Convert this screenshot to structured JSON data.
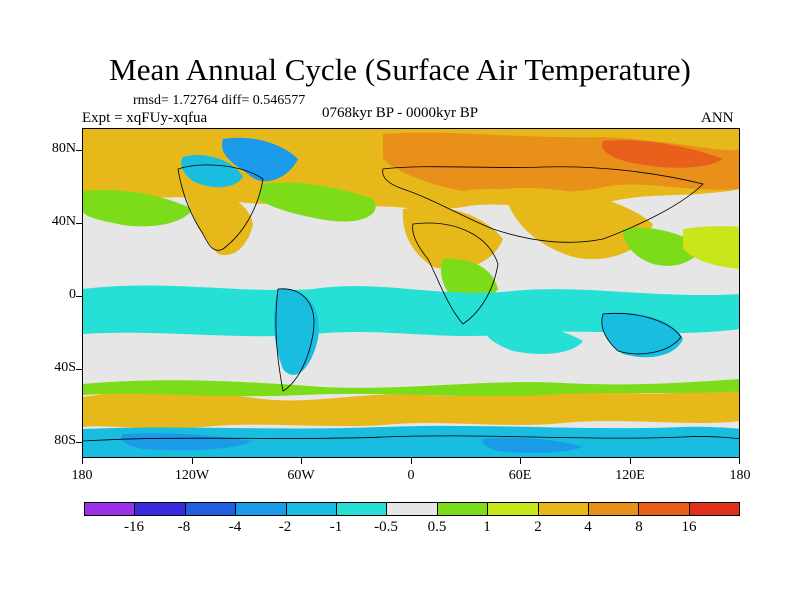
{
  "title": "Mean Annual Cycle (Surface Air Temperature)",
  "stats": "rmsd= 1.72764 diff= 0.546577",
  "experiment": "Expt = xqFUy-xqfua",
  "period": "0768kyr BP - 0000kyr BP",
  "season": "ANN",
  "lat_labels": [
    "80N",
    "40N",
    "0",
    "40S",
    "80S"
  ],
  "lon_labels": [
    "180",
    "120W",
    "60W",
    "0",
    "60E",
    "120E",
    "180"
  ],
  "colorbar": {
    "labels": [
      "-16",
      "-8",
      "-4",
      "-2",
      "-1",
      "-0.5",
      "0.5",
      "1",
      "2",
      "4",
      "8",
      "16"
    ],
    "colors": [
      "#9a30e8",
      "#3a2ae0",
      "#1f5fe0",
      "#1a9ae8",
      "#18bde0",
      "#26e0d6",
      "#e6e6e6",
      "#7cdc1a",
      "#c8e61a",
      "#e6b81a",
      "#e8901a",
      "#e8601a",
      "#e0301a"
    ]
  },
  "region_colors": {
    "neutral": "#e6e6e6",
    "warm1": "#7cdc1a",
    "warm2": "#c8e61a",
    "warm3": "#e6b81a",
    "warm4": "#e8901a",
    "warm5": "#e8601a",
    "cool1": "#26e0d6",
    "cool2": "#18bde0",
    "cool3": "#1a9ae8",
    "cool4": "#1f5fe0"
  }
}
